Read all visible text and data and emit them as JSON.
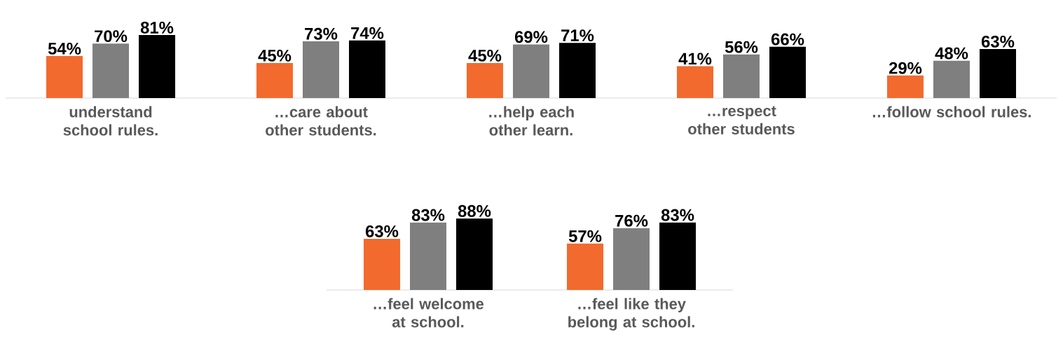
{
  "chart_data": [
    {
      "type": "bar",
      "categories": [
        "understand school rules.",
        "…care about other students.",
        "…help each other learn.",
        "…respect other students",
        "…follow school rules."
      ],
      "series": [
        {
          "color": "#f26a2e",
          "values": [
            54,
            45,
            45,
            41,
            29
          ],
          "value_labels": [
            "54%",
            "45%",
            "45%",
            "41%",
            "29%"
          ]
        },
        {
          "color": "#7f7f7f",
          "values": [
            70,
            73,
            69,
            56,
            48
          ],
          "value_labels": [
            "70%",
            "73%",
            "69%",
            "56%",
            "48%"
          ]
        },
        {
          "color": "#000000",
          "values": [
            81,
            74,
            71,
            66,
            63
          ],
          "value_labels": [
            "81%",
            "74%",
            "71%",
            "66%",
            "63%"
          ]
        }
      ]
    },
    {
      "type": "bar",
      "categories": [
        "…feel welcome at school.",
        "…feel like they belong at school."
      ],
      "series": [
        {
          "color": "#f26a2e",
          "values": [
            63,
            57
          ],
          "value_labels": [
            "63%",
            "57%"
          ]
        },
        {
          "color": "#7f7f7f",
          "values": [
            83,
            76
          ],
          "value_labels": [
            "83%",
            "76%"
          ]
        },
        {
          "color": "#000000",
          "values": [
            88,
            83
          ],
          "value_labels": [
            "88%",
            "83%"
          ]
        }
      ]
    }
  ]
}
